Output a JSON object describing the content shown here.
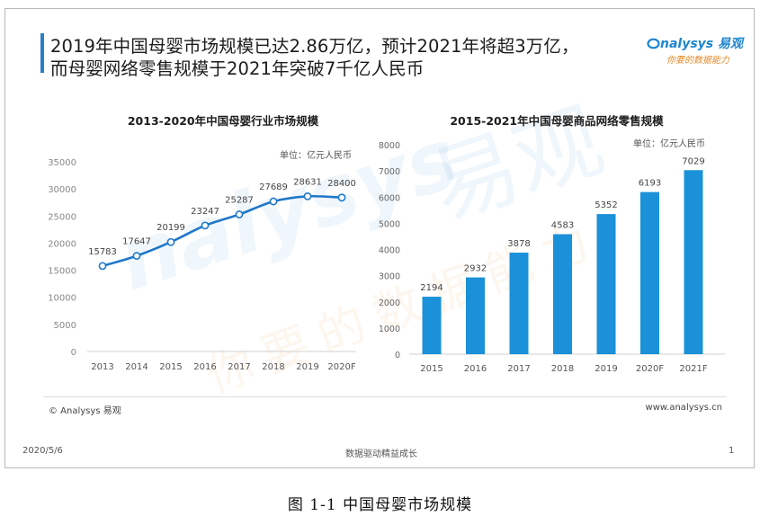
{
  "slide": {
    "title_line1": "2019年中国母婴市场规模已达2.86万亿，预计2021年将超3万亿，",
    "title_line2": "而母婴网络零售规模于2021年突破7千亿人民币",
    "logo_text": "nalysys 易观",
    "logo_tagline": "你要的数据能力",
    "copyright": "© Analysys 易观",
    "website": "www.analysys.cn",
    "date": "2020/5/6",
    "footer_center": "数据驱动精益成长",
    "page_number": "1",
    "watermark_en": "nalysys",
    "watermark_cn_brand": "易观",
    "watermark_cn_tagline": "你要的数据能力"
  },
  "caption": "图 1-1 中国母婴市场规模",
  "colors": {
    "accent": "#2a7fc9",
    "line": "#1f78c8",
    "bar": "#1a91d8",
    "logo_orange": "#e48a2a"
  },
  "chart_data": [
    {
      "type": "line",
      "title": "2013-2020年中国母婴行业市场规模",
      "unit": "单位：亿元人民币",
      "categories": [
        "2013",
        "2014",
        "2015",
        "2016",
        "2017",
        "2018",
        "2019",
        "2020F"
      ],
      "values": [
        15783,
        17647,
        20199,
        23247,
        25287,
        27689,
        28631,
        28400
      ],
      "yticks": [
        0,
        5000,
        10000,
        15000,
        20000,
        25000,
        30000,
        35000
      ],
      "ylim": [
        0,
        35000
      ],
      "grid": false
    },
    {
      "type": "bar",
      "title": "2015-2021年中国母婴商品网络零售规模",
      "unit": "单位：亿元人民币",
      "categories": [
        "2015",
        "2016",
        "2017",
        "2018",
        "2019",
        "2020F",
        "2021F"
      ],
      "values": [
        2194,
        2932,
        3878,
        4583,
        5352,
        6193,
        7029
      ],
      "yticks": [
        0,
        1000,
        2000,
        3000,
        4000,
        5000,
        6000,
        7000,
        8000
      ],
      "ylim": [
        0,
        8000
      ],
      "grid": false
    }
  ]
}
